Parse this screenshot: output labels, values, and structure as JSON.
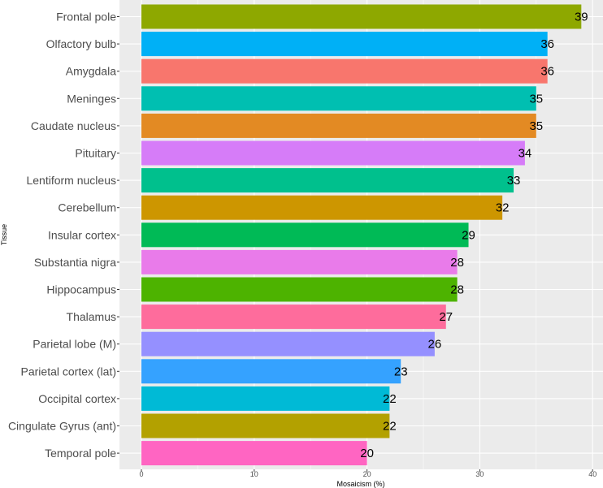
{
  "chart_data": {
    "type": "bar",
    "orientation": "horizontal",
    "title": "",
    "xlabel": "Mosaicism (%)",
    "ylabel": "Tissue",
    "xlim": [
      0,
      40
    ],
    "xticks": [
      0,
      10,
      20,
      30,
      40
    ],
    "grid": true,
    "categories": [
      "Frontal pole",
      "Olfactory bulb",
      "Amygdala",
      "Meninges",
      "Caudate nucleus",
      "Pituitary",
      "Lentiform nucleus",
      "Cerebellum",
      "Insular cortex",
      "Substantia nigra",
      "Hippocampus",
      "Thalamus",
      "Parietal lobe (M)",
      "Parietal cortex (lat)",
      "Occipital cortex",
      "Cingulate Gyrus  (ant)",
      "Temporal pole"
    ],
    "values": [
      39,
      36,
      36,
      35,
      35,
      34,
      33,
      32,
      29,
      28,
      28,
      27,
      26,
      23,
      22,
      22,
      20
    ],
    "colors": [
      "#8EA800",
      "#00B0F6",
      "#F8766D",
      "#00BFB1",
      "#E38A23",
      "#D67CF8",
      "#00C08D",
      "#CD9600",
      "#00BA56",
      "#E97BEA",
      "#4DB300",
      "#FE6C9C",
      "#9590FF",
      "#35A2FF",
      "#00BAD6",
      "#B3A100",
      "#FF65C2"
    ],
    "panel_background": "#EBEBEB",
    "grid_color": "#FFFFFF"
  }
}
